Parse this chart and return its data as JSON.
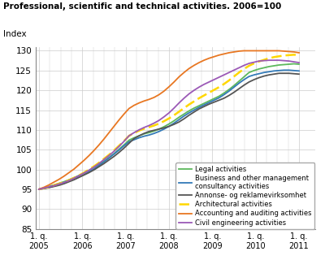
{
  "title": "Professional, scientific and technical activities. 2006=100",
  "ylabel": "Index",
  "ylim_main": [
    85,
    131
  ],
  "yticks": [
    85,
    90,
    95,
    100,
    105,
    110,
    115,
    120,
    125,
    130
  ],
  "xlabel_ticks": [
    "1. q.\n2005",
    "1. q.\n2006",
    "1. q.\n2007",
    "1. q.\n2008",
    "1. q.\n2009",
    "1. q.\n2010",
    "1. q.\n2011"
  ],
  "series": [
    {
      "label": "Legal activities",
      "color": "#5CB85C",
      "linestyle": "solid",
      "linewidth": 1.3,
      "data": [
        95.0,
        95.3,
        95.7,
        96.1,
        96.5,
        96.9,
        97.4,
        97.9,
        98.5,
        99.1,
        99.8,
        100.5,
        101.3,
        102.1,
        103.0,
        104.0,
        105.1,
        106.2,
        107.4,
        108.0,
        108.5,
        109.0,
        109.3,
        109.7,
        110.2,
        110.8,
        111.5,
        112.3,
        113.2,
        114.0,
        114.8,
        115.5,
        116.1,
        116.7,
        117.3,
        117.9,
        118.5,
        119.3,
        120.2,
        121.2,
        122.3,
        123.4,
        124.5,
        125.0,
        125.4,
        125.7,
        126.0,
        126.2,
        126.4,
        126.5,
        126.6,
        126.7,
        126.6
      ]
    },
    {
      "label": "Business and other management\nconsultancy activities",
      "color": "#337AB7",
      "linestyle": "solid",
      "linewidth": 1.3,
      "data": [
        95.0,
        95.2,
        95.5,
        95.8,
        96.1,
        96.5,
        97.0,
        97.5,
        98.1,
        98.7,
        99.4,
        100.1,
        101.0,
        101.9,
        102.9,
        103.9,
        104.9,
        106.0,
        107.0,
        107.5,
        108.0,
        108.4,
        108.7,
        109.1,
        109.6,
        110.2,
        110.9,
        111.7,
        112.6,
        113.5,
        114.3,
        115.0,
        115.7,
        116.3,
        116.9,
        117.5,
        118.1,
        118.9,
        119.8,
        120.8,
        121.8,
        122.7,
        123.5,
        123.9,
        124.2,
        124.5,
        124.7,
        124.9,
        125.0,
        125.1,
        125.1,
        125.0,
        124.9
      ]
    },
    {
      "label": "Annonse- og reklamevirksomhet",
      "color": "#555555",
      "linestyle": "solid",
      "linewidth": 1.3,
      "data": [
        95.0,
        95.2,
        95.4,
        95.7,
        96.0,
        96.4,
        96.9,
        97.4,
        98.0,
        98.6,
        99.2,
        99.9,
        100.7,
        101.5,
        102.4,
        103.3,
        104.3,
        105.4,
        106.6,
        107.8,
        108.5,
        109.1,
        109.6,
        109.9,
        110.2,
        110.5,
        110.9,
        111.4,
        112.0,
        112.8,
        113.7,
        114.5,
        115.3,
        115.9,
        116.5,
        117.0,
        117.5,
        118.0,
        118.7,
        119.5,
        120.4,
        121.3,
        122.1,
        122.7,
        123.2,
        123.6,
        123.9,
        124.1,
        124.3,
        124.3,
        124.3,
        124.2,
        124.1
      ]
    },
    {
      "label": "Architectural activities",
      "color": "#FFD700",
      "linestyle": "dashed",
      "linewidth": 1.8,
      "data": [
        95.0,
        95.3,
        95.6,
        96.0,
        96.4,
        96.8,
        97.3,
        97.9,
        98.5,
        99.2,
        100.0,
        100.8,
        101.7,
        102.7,
        103.7,
        104.8,
        106.0,
        107.2,
        108.5,
        109.2,
        109.8,
        110.3,
        110.7,
        111.1,
        111.6,
        112.2,
        112.9,
        113.7,
        114.6,
        115.5,
        116.4,
        117.2,
        118.0,
        118.7,
        119.4,
        120.1,
        120.8,
        121.6,
        122.5,
        123.5,
        124.5,
        125.4,
        126.2,
        126.8,
        127.3,
        127.7,
        128.1,
        128.4,
        128.6,
        128.8,
        128.9,
        129.0,
        128.9
      ]
    },
    {
      "label": "Accounting and auditing activities",
      "color": "#E87722",
      "linestyle": "solid",
      "linewidth": 1.3,
      "data": [
        95.0,
        95.5,
        96.1,
        96.8,
        97.5,
        98.3,
        99.2,
        100.1,
        101.2,
        102.3,
        103.5,
        104.8,
        106.2,
        107.7,
        109.3,
        110.9,
        112.5,
        114.0,
        115.4,
        116.2,
        116.8,
        117.3,
        117.7,
        118.2,
        118.9,
        119.8,
        120.9,
        122.1,
        123.4,
        124.5,
        125.5,
        126.3,
        127.0,
        127.6,
        128.1,
        128.5,
        128.9,
        129.2,
        129.5,
        129.7,
        129.9,
        130.0,
        130.0,
        130.0,
        130.0,
        130.0,
        130.0,
        130.0,
        130.0,
        129.9,
        129.8,
        129.7,
        129.5
      ]
    },
    {
      "label": "Civil engineering activities",
      "color": "#9B59B6",
      "linestyle": "solid",
      "linewidth": 1.3,
      "data": [
        95.0,
        95.3,
        95.6,
        95.9,
        96.3,
        96.7,
        97.2,
        97.8,
        98.4,
        99.1,
        99.8,
        100.6,
        101.5,
        102.5,
        103.5,
        104.6,
        105.8,
        107.1,
        108.5,
        109.3,
        110.0,
        110.6,
        111.1,
        111.7,
        112.4,
        113.3,
        114.3,
        115.5,
        116.8,
        118.0,
        119.1,
        120.0,
        120.8,
        121.5,
        122.1,
        122.7,
        123.3,
        123.9,
        124.5,
        125.1,
        125.7,
        126.3,
        126.8,
        127.1,
        127.4,
        127.5,
        127.6,
        127.6,
        127.6,
        127.5,
        127.4,
        127.2,
        127.0
      ]
    }
  ],
  "background_color": "#FFFFFF",
  "grid_color": "#CCCCCC",
  "n_quarters": 53,
  "year_tick_quarters": [
    0,
    4,
    8,
    12,
    16,
    20,
    24
  ]
}
